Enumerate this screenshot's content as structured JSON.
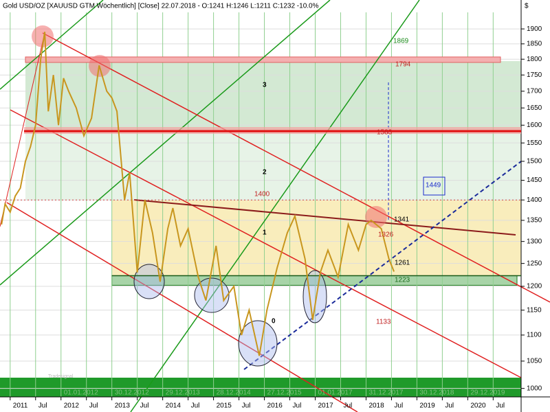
{
  "chart_data": {
    "type": "line",
    "title": "Gold USD/OZ [XAUUSD GTM  Wöchentlich] [Close] 22.07.2018 - O:1241 H:1246 L:1211 C:1232 -10.0%",
    "currency": "$",
    "log_scale": true,
    "grid": true,
    "xlim": [
      2010.8,
      2021.05
    ],
    "ylim": [
      985,
      1957
    ],
    "yticks": [
      1000,
      1050,
      1100,
      1150,
      1200,
      1250,
      1300,
      1350,
      1400,
      1450,
      1500,
      1550,
      1600,
      1650,
      1700,
      1750,
      1800,
      1850,
      1900
    ],
    "xticks": [
      {
        "value": 2011,
        "label": "2011"
      },
      {
        "value": 2011.5,
        "label": "Jul"
      },
      {
        "value": 2012,
        "label": "2012"
      },
      {
        "value": 2012.5,
        "label": "Jul"
      },
      {
        "value": 2013,
        "label": "2013"
      },
      {
        "value": 2013.5,
        "label": "Jul"
      },
      {
        "value": 2014,
        "label": "2014"
      },
      {
        "value": 2014.5,
        "label": "Jul"
      },
      {
        "value": 2015,
        "label": "2015"
      },
      {
        "value": 2015.5,
        "label": "Jul"
      },
      {
        "value": 2016,
        "label": "2016"
      },
      {
        "value": 2016.5,
        "label": "Jul"
      },
      {
        "value": 2017,
        "label": "2017"
      },
      {
        "value": 2017.5,
        "label": "Jul"
      },
      {
        "value": 2018,
        "label": "2018"
      },
      {
        "value": 2018.5,
        "label": "Jul"
      },
      {
        "value": 2019,
        "label": "2019"
      },
      {
        "value": 2019.5,
        "label": "Jul"
      },
      {
        "value": 2020,
        "label": "2020"
      },
      {
        "value": 2020.5,
        "label": "Jul"
      }
    ],
    "date_labels": [
      "01.01.2012",
      "30.12.2012",
      "29.12.2013",
      "28.12.2014",
      "27.12.2015",
      "01.01.2017",
      "31.12.2017",
      "30.12.2018",
      "29.12.2019"
    ],
    "series": [
      {
        "name": "Gold USD/OZ",
        "color": "#c8961e",
        "x": [
          2010.83,
          2010.9,
          2011.0,
          2011.1,
          2011.2,
          2011.3,
          2011.4,
          2011.5,
          2011.6,
          2011.68,
          2011.75,
          2011.85,
          2011.95,
          2012.05,
          2012.15,
          2012.3,
          2012.45,
          2012.6,
          2012.75,
          2012.9,
          2013.0,
          2013.1,
          2013.25,
          2013.35,
          2013.5,
          2013.65,
          2013.8,
          2013.95,
          2014.1,
          2014.2,
          2014.35,
          2014.5,
          2014.7,
          2014.85,
          2015.05,
          2015.2,
          2015.4,
          2015.55,
          2015.7,
          2015.9,
          2016.05,
          2016.25,
          2016.45,
          2016.6,
          2016.8,
          2016.95,
          2017.1,
          2017.25,
          2017.45,
          2017.65,
          2017.85,
          2018.0,
          2018.1,
          2018.3,
          2018.45,
          2018.55
        ],
        "values": [
          1340,
          1390,
          1370,
          1410,
          1430,
          1500,
          1540,
          1600,
          1800,
          1890,
          1640,
          1750,
          1600,
          1740,
          1700,
          1650,
          1570,
          1620,
          1780,
          1700,
          1680,
          1640,
          1400,
          1470,
          1230,
          1400,
          1320,
          1210,
          1330,
          1380,
          1290,
          1330,
          1220,
          1170,
          1290,
          1170,
          1200,
          1100,
          1150,
          1060,
          1150,
          1240,
          1320,
          1360,
          1260,
          1130,
          1230,
          1280,
          1220,
          1340,
          1280,
          1340,
          1350,
          1330,
          1260,
          1232
        ]
      }
    ],
    "levels": [
      1869,
      1794,
      1583,
      1449,
      1400,
      1341,
      1326,
      1261,
      1223,
      1133
    ],
    "zones": [
      "3",
      "2",
      "1",
      "0"
    ],
    "watermark": "Tradesignal"
  }
}
